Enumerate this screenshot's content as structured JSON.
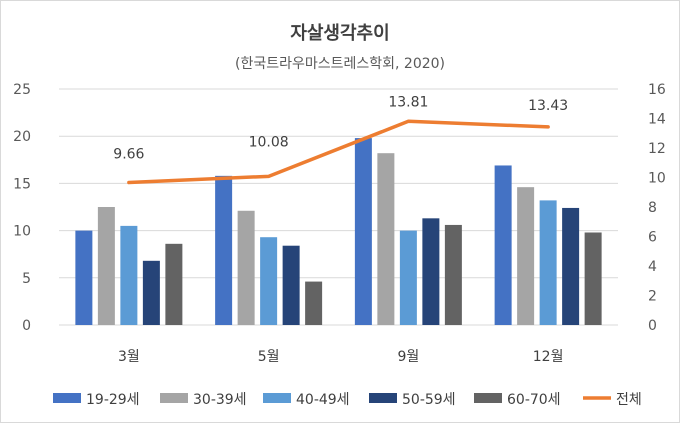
{
  "chart_data": {
    "type": "bar",
    "title": "자살생각추이",
    "subtitle": "(한국트라우마스트레스학회, 2020)",
    "categories": [
      "3월",
      "5월",
      "9월",
      "12월"
    ],
    "series": [
      {
        "name": "19-29세",
        "color": "#4472c4",
        "values": [
          10.0,
          15.8,
          19.8,
          16.9
        ]
      },
      {
        "name": "30-39세",
        "color": "#a5a5a5",
        "values": [
          12.5,
          12.1,
          18.2,
          14.6
        ]
      },
      {
        "name": "40-49세",
        "color": "#5b9bd5",
        "values": [
          10.5,
          9.3,
          10.0,
          13.2
        ]
      },
      {
        "name": "50-59세",
        "color": "#264478",
        "values": [
          6.8,
          8.4,
          11.3,
          12.4
        ]
      },
      {
        "name": "60-70세",
        "color": "#636363",
        "values": [
          8.6,
          4.6,
          10.6,
          9.8
        ]
      }
    ],
    "line_series": {
      "name": "전체",
      "color": "#ed7d31",
      "values": [
        9.66,
        10.08,
        13.81,
        13.43
      ],
      "labels": [
        "9.66",
        "10.08",
        "13.81",
        "13.43"
      ]
    },
    "y_left": {
      "min": 0,
      "max": 25,
      "ticks": [
        "0",
        "5",
        "10",
        "15",
        "20",
        "25"
      ]
    },
    "y_right": {
      "min": 0,
      "max": 16,
      "ticks": [
        "0",
        "2",
        "4",
        "6",
        "8",
        "10",
        "12",
        "14",
        "16"
      ]
    },
    "legend_position": "bottom",
    "grid": true
  }
}
